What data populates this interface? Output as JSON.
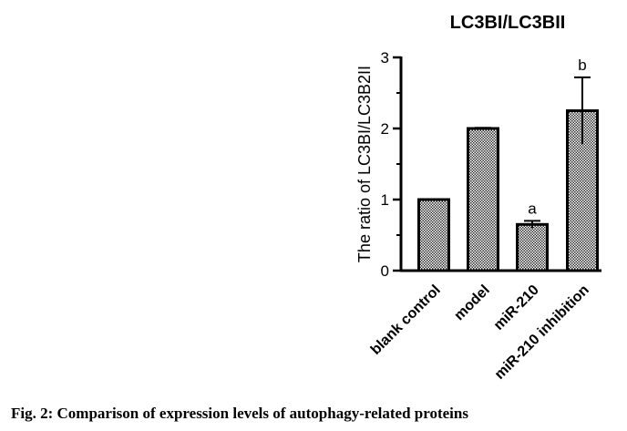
{
  "chart_data": {
    "type": "bar",
    "title": "LC3BI/LC3BII",
    "ylabel": "The ratio of LC3BI/LC3B2II",
    "xlabel": "",
    "categories": [
      "blank control",
      "model",
      "miR-210",
      "miR-210 inhibition"
    ],
    "values": [
      1.0,
      2.0,
      0.65,
      2.25
    ],
    "errors": [
      0.0,
      0.01,
      0.05,
      0.47
    ],
    "annotations": [
      "",
      "",
      "a",
      "b"
    ],
    "ylim": [
      0,
      3
    ],
    "yticks": [
      "0",
      "1",
      "2",
      "3"
    ],
    "bar_fill": "checkered",
    "bar_color": "#000000",
    "grid": false
  },
  "caption": "Fig. 2: Comparison of expression levels of autophagy-related proteins"
}
